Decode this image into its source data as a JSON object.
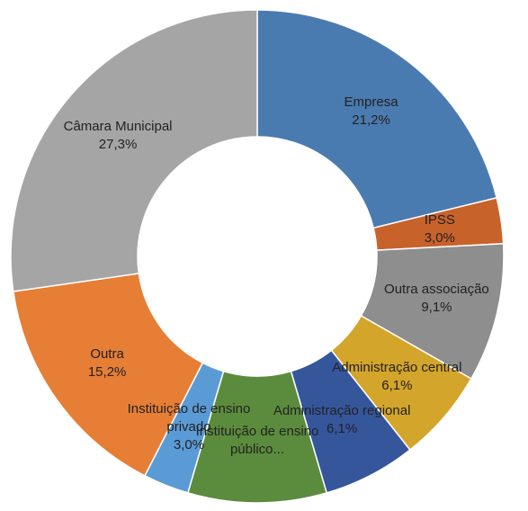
{
  "chart_data": {
    "type": "donut",
    "categories": [
      "Empresa",
      "IPSS",
      "Outra associação",
      "Administração central",
      "Administração regional",
      "Instituição de ensino público...",
      "Instituição de ensino privado",
      "Outra",
      "Câmara Municipal"
    ],
    "values": [
      21.2,
      3.0,
      9.1,
      6.1,
      6.1,
      9.1,
      3.0,
      15.2,
      27.3
    ],
    "value_labels": [
      "21,2%",
      "3,0%",
      "9,1%",
      "6,1%",
      "6,1%",
      null,
      "3,0%",
      "15,2%",
      "27,3%"
    ],
    "colors": [
      "#4a7bb0",
      "#c8622b",
      "#8e8e8e",
      "#d4a52b",
      "#36569c",
      "#5b8c3d",
      "#5b9bd5",
      "#e67e35",
      "#a5a5a5"
    ]
  }
}
